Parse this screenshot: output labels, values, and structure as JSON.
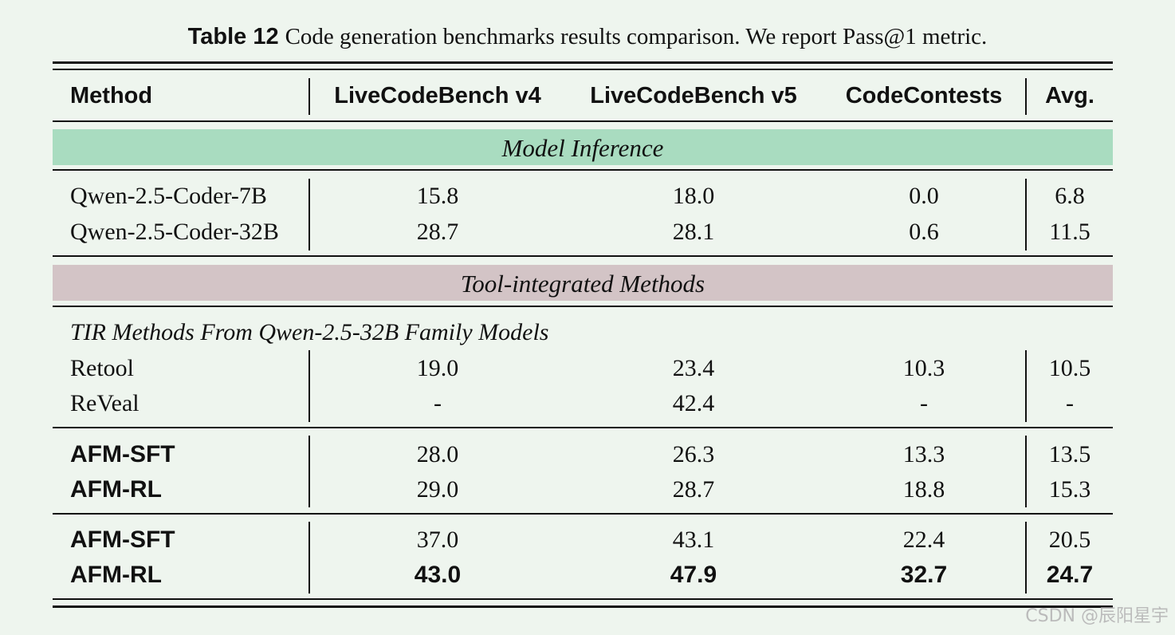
{
  "caption": {
    "label": "Table 12",
    "text": "Code generation benchmarks results comparison. We report Pass@1 metric."
  },
  "columns": [
    "Method",
    "LiveCodeBench v4",
    "LiveCodeBench v5",
    "CodeContests",
    "Avg."
  ],
  "sections": {
    "model_inference": "Model Inference",
    "tool_integrated": "Tool-integrated Methods",
    "tir_subheading": "TIR Methods From Qwen-2.5-32B Family Models"
  },
  "colors": {
    "page_background": "#eef5ee",
    "model_inference_band": "#a9dcc0",
    "tool_integrated_band": "#d3c4c6"
  },
  "rows": [
    {
      "method": "Qwen-2.5-Coder-7B",
      "v4": "15.8",
      "v5": "18.0",
      "cc": "0.0",
      "avg": "6.8"
    },
    {
      "method": "Qwen-2.5-Coder-32B",
      "v4": "28.7",
      "v5": "28.1",
      "cc": "0.6",
      "avg": "11.5"
    },
    {
      "method": "Retool",
      "v4": "19.0",
      "v5": "23.4",
      "cc": "10.3",
      "avg": "10.5"
    },
    {
      "method": "ReVeal",
      "v4": "-",
      "v5": "42.4",
      "cc": "-",
      "avg": "-"
    },
    {
      "method": "AFM-SFT",
      "v4": "28.0",
      "v5": "26.3",
      "cc": "13.3",
      "avg": "13.5"
    },
    {
      "method": "AFM-RL",
      "v4": "29.0",
      "v5": "28.7",
      "cc": "18.8",
      "avg": "15.3"
    },
    {
      "method": "AFM-SFT",
      "v4": "37.0",
      "v5": "43.1",
      "cc": "22.4",
      "avg": "20.5"
    },
    {
      "method": "AFM-RL",
      "v4": "43.0",
      "v5": "47.9",
      "cc": "32.7",
      "avg": "24.7"
    }
  ],
  "watermark": "CSDN @辰阳星宇"
}
